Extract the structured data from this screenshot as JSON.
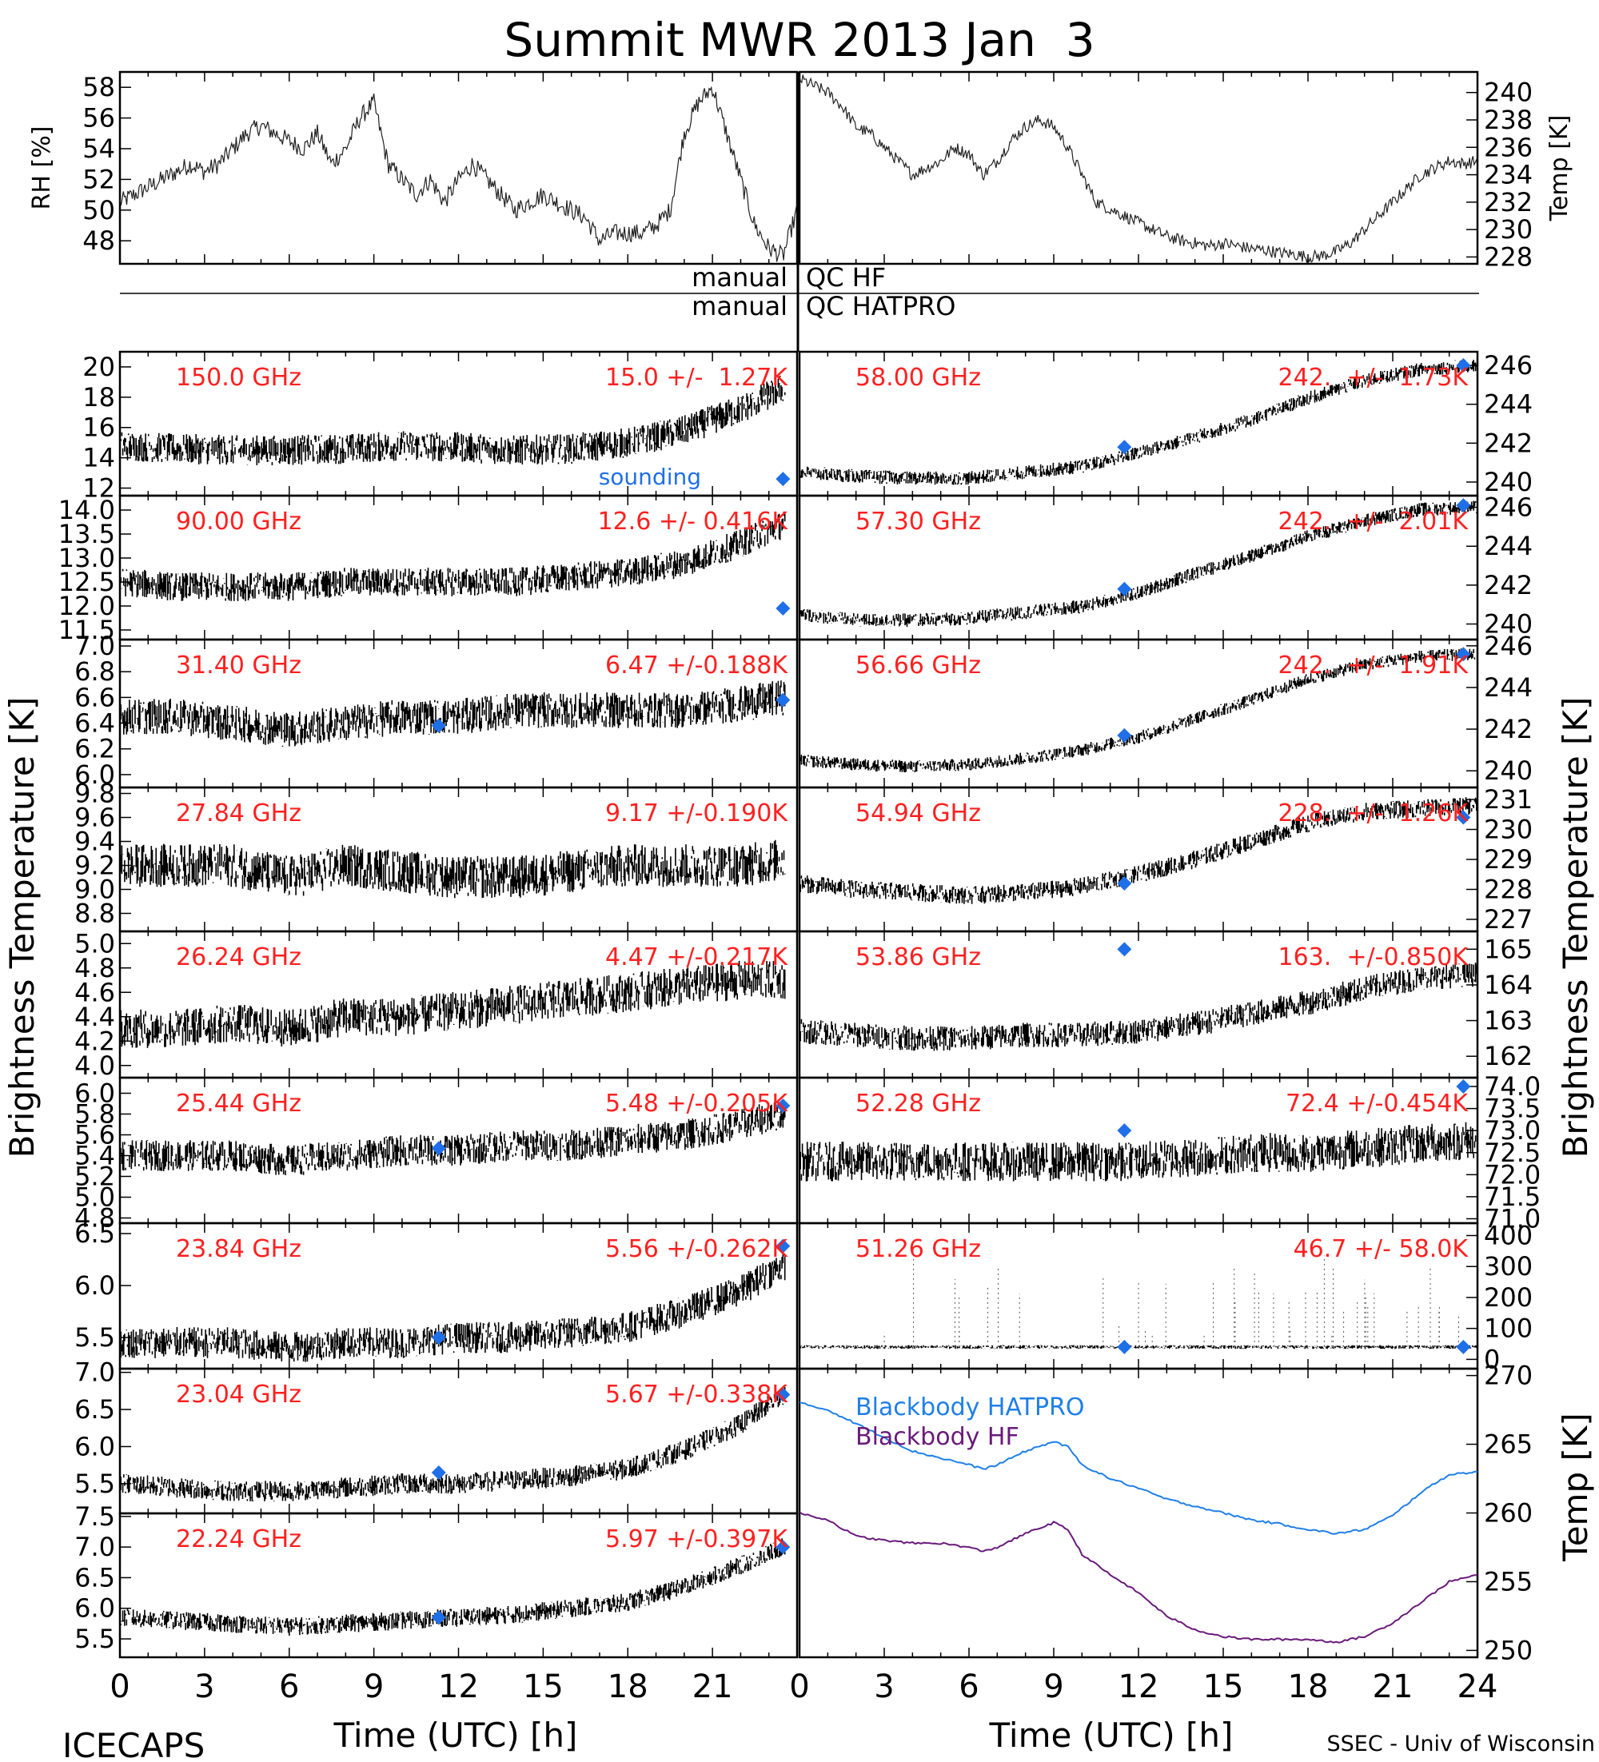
{
  "title": "Summit MWR 2013 Jan  3",
  "footer": {
    "left": "ICECAPS",
    "right": "SSEC - Univ of Wisconsin",
    "xlabel_left": "Time (UTC) [h]",
    "xlabel_right": "Time (UTC) [h]",
    "xticks_left": [
      "0",
      "3",
      "6",
      "9",
      "12",
      "15",
      "18",
      "21"
    ],
    "xticks_right": [
      "0",
      "3",
      "6",
      "9",
      "12",
      "15",
      "18",
      "21",
      "24"
    ]
  },
  "side_labels": {
    "left": "Brightness Temperature [K]",
    "right": "Brightness Temperature [K]",
    "right_bottom": "Temp [K]"
  },
  "qc": {
    "hf_left": "manual",
    "hf_right": "QC HF",
    "hatpro_left": "manual",
    "hatpro_right": "QC HATPRO"
  },
  "colors": {
    "label": "#ff2020",
    "marker": "#1f6fe8",
    "sounding_text": "#1f6fe8",
    "hatpro_line": "#1f7fe8",
    "hf_line": "#6a1a7a",
    "data": "#000000"
  },
  "chart_data": [
    {
      "type": "line",
      "panel": "met-rh",
      "ylabel": "RH [%]",
      "yticks": [
        "48",
        "50",
        "52",
        "54",
        "56",
        "58"
      ],
      "ylim": [
        46.5,
        59
      ],
      "x": [
        0,
        0.5,
        1,
        1.5,
        2,
        2.5,
        3,
        3.5,
        4,
        4.5,
        5,
        5.5,
        6,
        6.5,
        7,
        7.5,
        8,
        8.5,
        9,
        9.5,
        10,
        10.5,
        11,
        11.5,
        12,
        12.5,
        13,
        13.5,
        14,
        14.5,
        15,
        15.5,
        16,
        16.5,
        17,
        17.5,
        18,
        18.5,
        19,
        19.5,
        20,
        20.5,
        21,
        21.5,
        22,
        22.5,
        23,
        23.5,
        24
      ],
      "values": [
        50.5,
        51,
        51.5,
        52,
        52.5,
        53,
        52.5,
        53,
        54,
        55,
        55.5,
        55,
        54.5,
        54,
        55,
        53,
        54,
        56,
        57,
        53,
        52,
        51,
        52,
        50.5,
        52,
        53,
        52,
        51,
        50,
        50.5,
        51,
        50.5,
        50,
        49.5,
        48,
        48.5,
        48.5,
        48.5,
        49,
        50,
        55,
        57,
        58,
        55,
        52,
        49,
        47.5,
        47,
        50
      ]
    },
    {
      "type": "line",
      "panel": "met-temp",
      "ylabel": "Temp [K]",
      "yticks": [
        "228",
        "230",
        "232",
        "234",
        "236",
        "238",
        "240"
      ],
      "ylim": [
        227.5,
        241.5
      ],
      "x": [
        0,
        0.5,
        1,
        1.5,
        2,
        2.5,
        3,
        3.5,
        4,
        4.5,
        5,
        5.5,
        6,
        6.5,
        7,
        7.5,
        8,
        8.5,
        9,
        9.5,
        10,
        10.5,
        11,
        11.5,
        12,
        12.5,
        13,
        13.5,
        14,
        14.5,
        15,
        15.5,
        16,
        16.5,
        17,
        17.5,
        18,
        18.5,
        19,
        19.5,
        20,
        20.5,
        21,
        21.5,
        22,
        22.5,
        23,
        23.5,
        24
      ],
      "values": [
        241,
        240.5,
        240,
        239,
        237.5,
        237,
        236,
        235,
        234,
        234.5,
        235,
        236,
        235.5,
        234,
        235,
        236.5,
        237.5,
        238,
        237.5,
        236,
        234,
        232,
        231.5,
        231,
        230.5,
        230,
        229.5,
        229.2,
        229,
        228.8,
        229,
        228.8,
        228.6,
        228.5,
        228.3,
        228.2,
        228,
        228.1,
        228.4,
        229,
        230,
        231,
        232,
        233,
        234,
        234.5,
        235,
        234.8,
        235
      ]
    },
    {
      "type": "line",
      "panel": "ch-150.0",
      "side": "left",
      "freq": "150.0 GHz",
      "stats": "15.0 +/-  1.27K",
      "annotation": "sounding",
      "yticks": [
        "12",
        "14",
        "16",
        "18",
        "20"
      ],
      "ylim": [
        11.5,
        21
      ],
      "x": [
        0,
        2,
        4,
        6,
        8,
        10,
        12,
        14,
        16,
        18,
        20,
        22,
        23.5
      ],
      "values": [
        14.8,
        14.6,
        14.5,
        14.5,
        14.6,
        14.8,
        14.7,
        14.5,
        14.6,
        15,
        15.8,
        17.2,
        18.6
      ],
      "noise": 1.0,
      "sounding": [
        [
          23.5,
          12.6
        ]
      ]
    },
    {
      "type": "line",
      "panel": "ch-58.00",
      "side": "right",
      "freq": "58.00 GHz",
      "stats": "242.  +/-  1.73K",
      "yticks": [
        "240",
        "242",
        "244",
        "246"
      ],
      "ylim": [
        239.3,
        246.7
      ],
      "x": [
        0,
        2,
        4,
        6,
        8,
        10,
        12,
        14,
        16,
        18,
        20,
        22,
        24
      ],
      "values": [
        240.5,
        240.3,
        240.2,
        240.2,
        240.5,
        240.8,
        241.5,
        242.3,
        243.2,
        244.3,
        245.2,
        245.8,
        246
      ],
      "noise": 0.35,
      "sounding": [
        [
          11.5,
          241.8
        ],
        [
          23.5,
          246
        ]
      ]
    },
    {
      "type": "line",
      "panel": "ch-90.00",
      "side": "left",
      "freq": "90.00 GHz",
      "stats": "12.6 +/- 0.416K",
      "yticks": [
        "11.5",
        "12.0",
        "12.5",
        "13.0",
        "13.5",
        "14.0"
      ],
      "ylim": [
        11.3,
        14.3
      ],
      "x": [
        0,
        2,
        4,
        6,
        8,
        10,
        12,
        14,
        16,
        18,
        20,
        22,
        23.5
      ],
      "values": [
        12.5,
        12.4,
        12.4,
        12.4,
        12.5,
        12.5,
        12.5,
        12.5,
        12.6,
        12.7,
        12.9,
        13.3,
        13.7
      ],
      "noise": 0.3,
      "sounding": [
        [
          23.5,
          11.95
        ]
      ]
    },
    {
      "type": "line",
      "panel": "ch-57.30",
      "side": "right",
      "freq": "57.30 GHz",
      "stats": "242.  +/-  2.01K",
      "yticks": [
        "240",
        "242",
        "244",
        "246"
      ],
      "ylim": [
        239.2,
        246.6
      ],
      "x": [
        0,
        2,
        4,
        6,
        8,
        10,
        12,
        14,
        16,
        18,
        20,
        22,
        24
      ],
      "values": [
        240.5,
        240.2,
        240.2,
        240.3,
        240.6,
        240.9,
        241.6,
        242.6,
        243.5,
        244.5,
        245.3,
        245.9,
        246
      ],
      "noise": 0.35,
      "sounding": [
        [
          11.5,
          241.8
        ],
        [
          23.5,
          246.1
        ]
      ]
    },
    {
      "type": "line",
      "panel": "ch-31.40",
      "side": "left",
      "freq": "31.40 GHz",
      "stats": "6.47 +/-0.188K",
      "yticks": [
        "6.0",
        "6.2",
        "6.4",
        "6.6",
        "6.8",
        "7.0"
      ],
      "ylim": [
        5.9,
        7.05
      ],
      "x": [
        0,
        2,
        4,
        6,
        8,
        10,
        12,
        14,
        16,
        18,
        20,
        22,
        23.5
      ],
      "values": [
        6.45,
        6.45,
        6.4,
        6.35,
        6.4,
        6.45,
        6.45,
        6.5,
        6.5,
        6.5,
        6.5,
        6.55,
        6.6
      ],
      "noise": 0.14,
      "sounding": [
        [
          11.3,
          6.38
        ],
        [
          23.5,
          6.58
        ]
      ]
    },
    {
      "type": "line",
      "panel": "ch-56.66",
      "side": "right",
      "freq": "56.66 GHz",
      "stats": "242.  +/-  1.91K",
      "yticks": [
        "240",
        "242",
        "244",
        "246"
      ],
      "ylim": [
        239.2,
        246.3
      ],
      "x": [
        0,
        2,
        4,
        6,
        8,
        10,
        12,
        14,
        16,
        18,
        20,
        22,
        24
      ],
      "values": [
        240.5,
        240.3,
        240.2,
        240.3,
        240.6,
        241,
        241.6,
        242.5,
        243.4,
        244.4,
        245.1,
        245.5,
        245.6
      ],
      "noise": 0.3,
      "sounding": [
        [
          11.5,
          241.7
        ],
        [
          23.5,
          245.6
        ]
      ]
    },
    {
      "type": "line",
      "panel": "ch-27.84",
      "side": "left",
      "freq": "27.84 GHz",
      "stats": "9.17 +/-0.190K",
      "yticks": [
        "8.8",
        "9.0",
        "9.2",
        "9.4",
        "9.6",
        "9.8"
      ],
      "ylim": [
        8.65,
        9.85
      ],
      "x": [
        0,
        2,
        4,
        6,
        8,
        10,
        12,
        14,
        16,
        18,
        20,
        22,
        23.5
      ],
      "values": [
        9.2,
        9.2,
        9.2,
        9.1,
        9.2,
        9.15,
        9.1,
        9.1,
        9.15,
        9.2,
        9.2,
        9.2,
        9.25
      ],
      "noise": 0.18,
      "sounding": []
    },
    {
      "type": "line",
      "panel": "ch-54.94",
      "side": "right",
      "freq": "54.94 GHz",
      "stats": "228.  +/-  1.26K",
      "yticks": [
        "227",
        "228",
        "229",
        "230",
        "231"
      ],
      "ylim": [
        226.6,
        231.4
      ],
      "x": [
        0,
        2,
        4,
        6,
        8,
        10,
        12,
        14,
        16,
        18,
        20,
        22,
        24
      ],
      "values": [
        228.2,
        228,
        227.9,
        227.8,
        227.9,
        228.1,
        228.5,
        229,
        229.6,
        230.2,
        230.6,
        230.7,
        230.8
      ],
      "noise": 0.3,
      "sounding": [
        [
          11.5,
          228.2
        ],
        [
          23.5,
          230.4
        ]
      ]
    },
    {
      "type": "line",
      "panel": "ch-26.24",
      "side": "left",
      "freq": "26.24 GHz",
      "stats": "4.47 +/-0.217K",
      "yticks": [
        "4.0",
        "4.2",
        "4.4",
        "4.6",
        "4.8",
        "5.0"
      ],
      "ylim": [
        3.9,
        5.1
      ],
      "x": [
        0,
        2,
        4,
        6,
        8,
        10,
        12,
        14,
        16,
        18,
        20,
        22,
        23.5
      ],
      "values": [
        4.3,
        4.3,
        4.35,
        4.3,
        4.4,
        4.4,
        4.45,
        4.5,
        4.55,
        4.6,
        4.65,
        4.7,
        4.7
      ],
      "noise": 0.16,
      "sounding": []
    },
    {
      "type": "line",
      "panel": "ch-53.86",
      "side": "right",
      "freq": "53.86 GHz",
      "stats": "163.  +/-0.850K",
      "yticks": [
        "162",
        "163",
        "164",
        "165"
      ],
      "ylim": [
        161.4,
        165.5
      ],
      "x": [
        0,
        2,
        4,
        6,
        8,
        10,
        12,
        14,
        16,
        18,
        20,
        22,
        24
      ],
      "values": [
        162.7,
        162.6,
        162.5,
        162.5,
        162.6,
        162.6,
        162.7,
        162.9,
        163.2,
        163.5,
        163.9,
        164.2,
        164.3
      ],
      "noise": 0.35,
      "sounding": [
        [
          11.5,
          165
        ]
      ]
    },
    {
      "type": "line",
      "panel": "ch-25.44",
      "side": "left",
      "freq": "25.44 GHz",
      "stats": "5.48 +/-0.205K",
      "yticks": [
        "4.8",
        "5.0",
        "5.2",
        "5.4",
        "5.6",
        "5.8",
        "6.0"
      ],
      "ylim": [
        4.75,
        6.15
      ],
      "x": [
        0,
        2,
        4,
        6,
        8,
        10,
        12,
        14,
        16,
        18,
        20,
        22,
        23.5
      ],
      "values": [
        5.4,
        5.4,
        5.4,
        5.35,
        5.4,
        5.45,
        5.45,
        5.5,
        5.5,
        5.55,
        5.6,
        5.7,
        5.8
      ],
      "noise": 0.15,
      "sounding": [
        [
          11.3,
          5.47
        ],
        [
          23.5,
          5.88
        ]
      ]
    },
    {
      "type": "line",
      "panel": "ch-52.28",
      "side": "right",
      "freq": "52.28 GHz",
      "stats": "72.4 +/-0.454K",
      "yticks": [
        "71.0",
        "71.5",
        "72.0",
        "72.5",
        "73.0",
        "73.5",
        "74.0"
      ],
      "ylim": [
        70.9,
        74.2
      ],
      "x": [
        0,
        2,
        4,
        6,
        8,
        10,
        12,
        14,
        16,
        18,
        20,
        22,
        24
      ],
      "values": [
        72.3,
        72.3,
        72.3,
        72.3,
        72.3,
        72.3,
        72.3,
        72.4,
        72.5,
        72.5,
        72.6,
        72.7,
        72.8
      ],
      "noise": 0.45,
      "sounding": [
        [
          11.5,
          73.0
        ],
        [
          23.5,
          74.0
        ]
      ]
    },
    {
      "type": "line",
      "panel": "ch-23.84",
      "side": "left",
      "freq": "23.84 GHz",
      "stats": "5.56 +/-0.262K",
      "yticks": [
        "5.5",
        "6.0",
        "6.5"
      ],
      "ylim": [
        5.2,
        6.6
      ],
      "x": [
        0,
        2,
        4,
        6,
        8,
        10,
        12,
        14,
        16,
        18,
        20,
        22,
        23.5
      ],
      "values": [
        5.45,
        5.45,
        5.45,
        5.4,
        5.45,
        5.45,
        5.5,
        5.5,
        5.55,
        5.6,
        5.75,
        5.95,
        6.2
      ],
      "noise": 0.15,
      "sounding": [
        [
          11.3,
          5.5
        ],
        [
          23.5,
          6.38
        ]
      ]
    },
    {
      "type": "line",
      "panel": "ch-51.26",
      "side": "right",
      "freq": "51.26 GHz",
      "stats": "46.7 +/- 58.0K",
      "yticks": [
        "0",
        "100",
        "200",
        "300",
        "400"
      ],
      "ylim": [
        -30,
        440
      ],
      "x": [
        0,
        2,
        4,
        6,
        8,
        10,
        12,
        14,
        16,
        18,
        20,
        22,
        24
      ],
      "values": [
        40,
        40,
        40,
        40,
        40,
        40,
        40,
        40,
        40,
        40,
        40,
        40,
        40
      ],
      "noise": 6,
      "spikes": true,
      "sounding": [
        [
          11.5,
          40
        ],
        [
          23.5,
          40
        ]
      ]
    },
    {
      "type": "line",
      "panel": "ch-23.04",
      "side": "left",
      "freq": "23.04 GHz",
      "stats": "5.67 +/-0.338K",
      "yticks": [
        "5.5",
        "6.0",
        "6.5",
        "7.0"
      ],
      "ylim": [
        5.1,
        7.05
      ],
      "x": [
        0,
        2,
        4,
        6,
        8,
        10,
        12,
        14,
        16,
        18,
        20,
        22,
        23.5
      ],
      "values": [
        5.5,
        5.45,
        5.4,
        5.4,
        5.45,
        5.5,
        5.5,
        5.55,
        5.6,
        5.7,
        5.95,
        6.3,
        6.7
      ],
      "noise": 0.14,
      "sounding": [
        [
          11.3,
          5.65
        ],
        [
          23.5,
          6.7
        ]
      ]
    },
    {
      "type": "line",
      "panel": "blackbody",
      "side": "right",
      "ylabel": "Temp [K]",
      "yticks": [
        "250",
        "255",
        "260",
        "265",
        "270"
      ],
      "ylim": [
        249.5,
        270.5
      ],
      "series": [
        {
          "name": "Blackbody HATPRO",
          "x": [
            0,
            1,
            2,
            3,
            4,
            5,
            6,
            6.5,
            7,
            8,
            9,
            9.5,
            10,
            11,
            12,
            13,
            14,
            15,
            16,
            17,
            18,
            19,
            20,
            21,
            22,
            23,
            24
          ],
          "values": [
            268,
            267.5,
            266.5,
            265.5,
            264.5,
            264,
            263.5,
            263.2,
            263.5,
            264.5,
            265.2,
            264.8,
            263.5,
            262.5,
            261.8,
            261,
            260.5,
            260,
            259.5,
            259.2,
            258.8,
            258.5,
            258.8,
            259.8,
            261.5,
            262.8,
            263
          ]
        },
        {
          "name": "Blackbody HF",
          "x": [
            0,
            1,
            2,
            3,
            4,
            5,
            6,
            6.5,
            7,
            8,
            9,
            9.5,
            10,
            11,
            12,
            13,
            14,
            15,
            16,
            17,
            18,
            19,
            20,
            21,
            22,
            23,
            24
          ],
          "values": [
            260,
            259.5,
            258.3,
            258,
            257.8,
            257.8,
            257.5,
            257.2,
            257.5,
            258.5,
            259.3,
            258.8,
            257,
            255.5,
            254.2,
            252.5,
            251.5,
            251,
            250.8,
            250.8,
            250.8,
            250.6,
            251,
            252,
            253.5,
            255,
            255.5
          ]
        }
      ]
    },
    {
      "type": "line",
      "panel": "ch-22.24",
      "side": "left",
      "freq": "22.24 GHz",
      "stats": "5.97 +/-0.397K",
      "yticks": [
        "5.5",
        "6.0",
        "6.5",
        "7.0",
        "7.5"
      ],
      "ylim": [
        5.2,
        7.55
      ],
      "x": [
        0,
        2,
        4,
        6,
        8,
        10,
        12,
        14,
        16,
        18,
        20,
        22,
        23.5
      ],
      "values": [
        5.85,
        5.8,
        5.75,
        5.7,
        5.75,
        5.8,
        5.85,
        5.9,
        6.0,
        6.1,
        6.35,
        6.7,
        7.0
      ],
      "noise": 0.15,
      "sounding": [
        [
          11.3,
          5.85
        ],
        [
          23.5,
          7.0
        ]
      ]
    }
  ]
}
